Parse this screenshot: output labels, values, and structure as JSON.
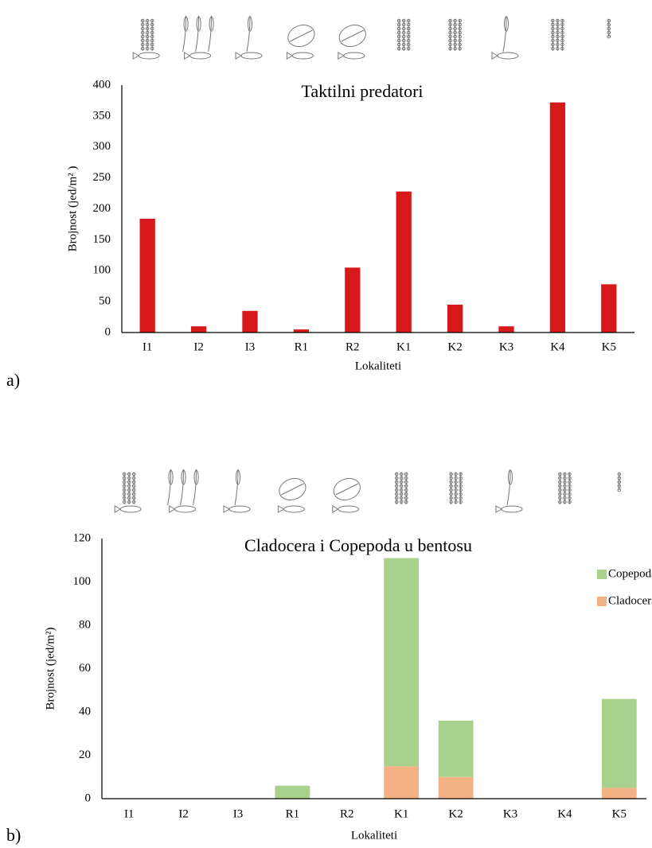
{
  "chart_data": [
    {
      "type": "bar",
      "panel_label": "a)",
      "title": "Taktilni predatori",
      "y_label": "Brojnost (jed/m² )",
      "x_label": "Lokaliteti",
      "categories": [
        "I1",
        "I2",
        "I3",
        "R1",
        "R2",
        "K1",
        "K2",
        "K3",
        "K4",
        "K5"
      ],
      "values": [
        184,
        10,
        35,
        5,
        105,
        228,
        45,
        10,
        372,
        78
      ],
      "color": "#d7191c",
      "ylim": [
        0,
        400
      ],
      "yticks": [
        0,
        50,
        100,
        150,
        200,
        250,
        300,
        350,
        400
      ],
      "grid": false
    },
    {
      "type": "stacked_bar",
      "panel_label": "b)",
      "title": "Cladocera i Copepoda u bentosu",
      "y_label": "Brojnost (jed/m²)",
      "x_label": "Lokaliteti",
      "categories": [
        "I1",
        "I2",
        "I3",
        "R1",
        "R2",
        "K1",
        "K2",
        "K3",
        "K4",
        "K5"
      ],
      "series": [
        {
          "name": "Cladocera",
          "color": "#f4b183",
          "values": [
            0,
            0,
            0,
            0,
            0,
            15,
            10,
            0,
            0,
            5
          ]
        },
        {
          "name": "Copepoda",
          "color": "#a9d18e",
          "values": [
            0,
            0,
            0,
            6,
            0,
            96,
            26,
            0,
            0,
            41
          ]
        }
      ],
      "ylim": [
        0,
        120
      ],
      "yticks": [
        0,
        20,
        40,
        60,
        80,
        100,
        120
      ],
      "grid": false,
      "legend": "upper right"
    }
  ]
}
